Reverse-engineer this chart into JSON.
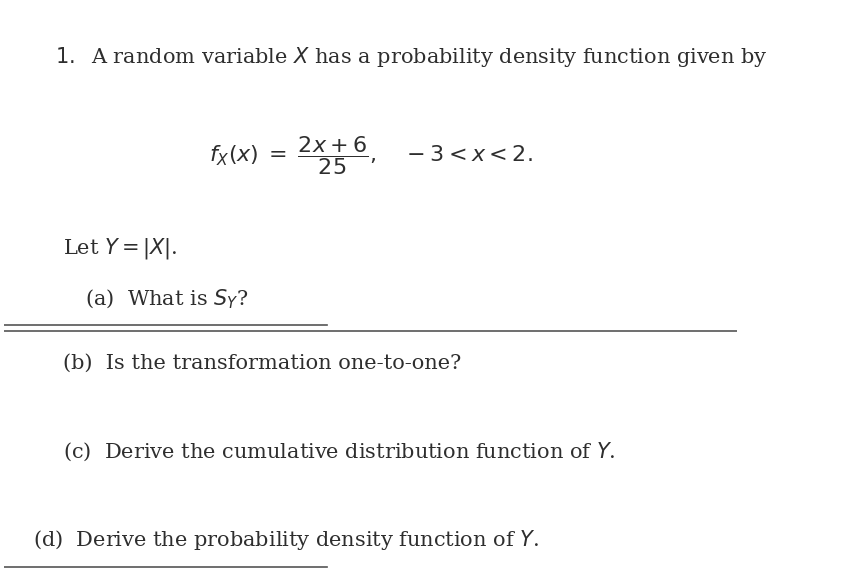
{
  "background_color": "#ffffff",
  "figsize": [
    8.45,
    5.87
  ],
  "dpi": 100,
  "text_color": "#2e2e2e",
  "hr_color": "#555555"
}
